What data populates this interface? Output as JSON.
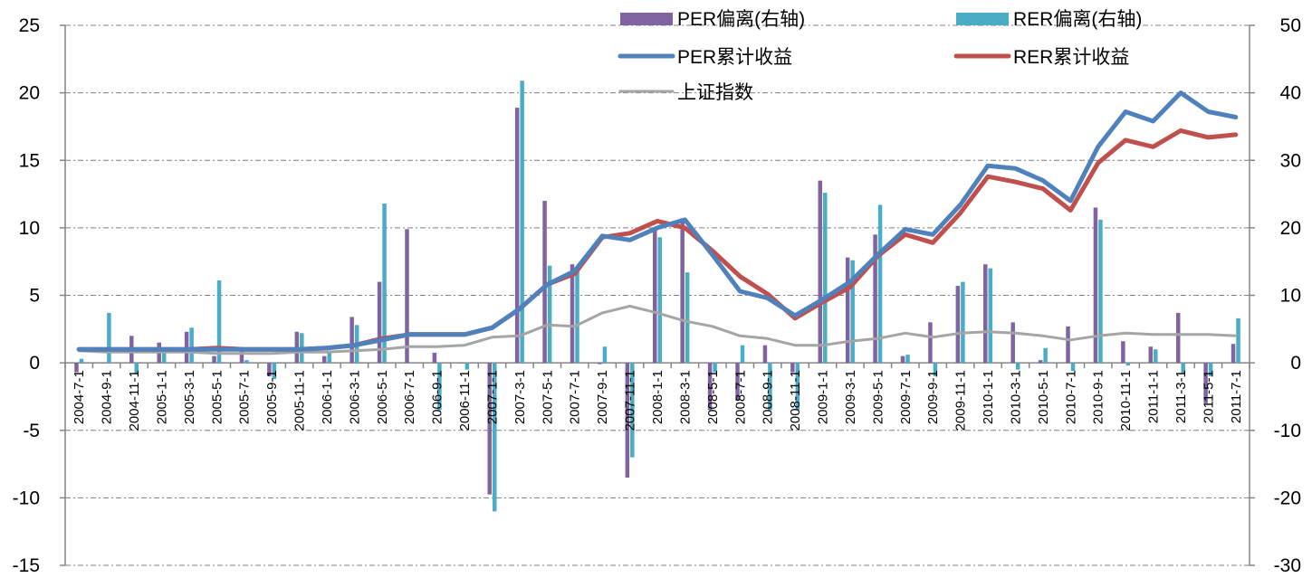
{
  "chart_data": {
    "type": "bar+line",
    "title": "",
    "categories": [
      "2004-7-1",
      "2004-9-1",
      "2004-11-1",
      "2005-1-1",
      "2005-3-1",
      "2005-5-1",
      "2005-7-1",
      "2005-9-1",
      "2005-11-1",
      "2006-1-1",
      "2006-3-1",
      "2006-5-1",
      "2006-7-1",
      "2006-9-1",
      "2006-11-1",
      "2007-1-1",
      "2007-3-1",
      "2007-5-1",
      "2007-7-1",
      "2007-9-1",
      "2007-11-1",
      "2008-1-1",
      "2008-3-1",
      "2008-5-1",
      "2008-7-1",
      "2008-9-1",
      "2008-11-1",
      "2009-1-1",
      "2009-3-1",
      "2009-5-1",
      "2009-7-1",
      "2009-9-1",
      "2009-11-1",
      "2010-1-1",
      "2010-3-1",
      "2010-5-1",
      "2010-7-1",
      "2010-9-1",
      "2010-11-1",
      "2011-1-1",
      "2011-3-1",
      "2011-5-1",
      "2011-7-1"
    ],
    "left_axis": {
      "ylim": [
        -15,
        25
      ],
      "ticks": [
        -15,
        -10,
        -5,
        0,
        5,
        10,
        15,
        20,
        25
      ]
    },
    "right_axis": {
      "ylim": [
        -30,
        50
      ],
      "ticks": [
        -30,
        -20,
        -10,
        0,
        10,
        20,
        30,
        40,
        50
      ]
    },
    "bar_series": [
      {
        "name": "PER偏离(右轴)",
        "axis": "right",
        "color": "#8064A2",
        "values": [
          -1.4,
          0,
          4,
          3,
          4.6,
          1,
          2,
          -2,
          4.6,
          1,
          6.8,
          12,
          19.8,
          1.5,
          0,
          -19.5,
          37.8,
          24,
          14.6,
          -0.2,
          -17,
          20,
          21.4,
          -7,
          -5.6,
          2.6,
          -1.4,
          27,
          15.6,
          19,
          1,
          6,
          11.4,
          14.6,
          6,
          0.4,
          5.4,
          23,
          3.2,
          2.4,
          7.4,
          -6,
          2.8
        ]
      },
      {
        "name": "RER偏离(右轴)",
        "axis": "right",
        "color": "#4BACC6",
        "values": [
          0.6,
          7.4,
          -1.6,
          2,
          5.2,
          12.2,
          0.4,
          -2.4,
          4.4,
          1.8,
          5.6,
          23.6,
          0,
          -7,
          -1,
          -22,
          41.8,
          14.4,
          13.6,
          2.4,
          -14,
          18.6,
          13.4,
          -1.4,
          2.6,
          -7,
          -7,
          25.2,
          15.2,
          23.4,
          1.2,
          -2,
          12,
          14,
          -1,
          2.2,
          -1.2,
          21.2,
          -0.4,
          2,
          -1.6,
          -2,
          6.6
        ]
      }
    ],
    "line_series": [
      {
        "name": "PER累计收益",
        "axis": "left",
        "color": "#4F81BD",
        "values": [
          1,
          1,
          1,
          1,
          1,
          1,
          1,
          1,
          1,
          1.1,
          1.3,
          1.7,
          2.1,
          2.1,
          2.1,
          2.6,
          4,
          5.8,
          6.8,
          9.4,
          9.1,
          10,
          10.6,
          8,
          5.3,
          4.8,
          3.5,
          4.7,
          6,
          8,
          9.9,
          9.5,
          11.7,
          14.6,
          14.4,
          13.5,
          12,
          16,
          18.6,
          17.9,
          20,
          18.6,
          18.2
        ]
      },
      {
        "name": "RER累计收益",
        "axis": "left",
        "color": "#C0504D",
        "values": [
          1,
          1,
          1,
          1,
          1,
          1.1,
          1,
          1,
          1,
          1.1,
          1.3,
          1.8,
          2.1,
          2.1,
          2.1,
          2.6,
          4,
          5.8,
          6.6,
          9.3,
          9.6,
          10.5,
          10,
          8.3,
          6.4,
          5.1,
          3.3,
          4.5,
          5.6,
          7.9,
          9.5,
          8.9,
          11.1,
          13.8,
          13.4,
          12.9,
          11.3,
          14.8,
          16.5,
          16,
          17.2,
          16.7,
          16.9
        ]
      },
      {
        "name": "上证指数",
        "axis": "left",
        "color": "#A5A5A5",
        "values": [
          0.9,
          0.8,
          0.8,
          0.8,
          0.8,
          0.7,
          0.7,
          0.7,
          0.8,
          0.8,
          0.9,
          1,
          1.2,
          1.2,
          1.3,
          1.9,
          2,
          2.8,
          2.7,
          3.7,
          4.2,
          3.7,
          3.1,
          2.7,
          2,
          1.8,
          1.3,
          1.3,
          1.6,
          1.8,
          2.2,
          1.9,
          2.2,
          2.3,
          2.2,
          2,
          1.7,
          2,
          2.2,
          2.1,
          2.1,
          2.1,
          2
        ]
      }
    ],
    "grid": true,
    "legend_position": "top-right"
  }
}
